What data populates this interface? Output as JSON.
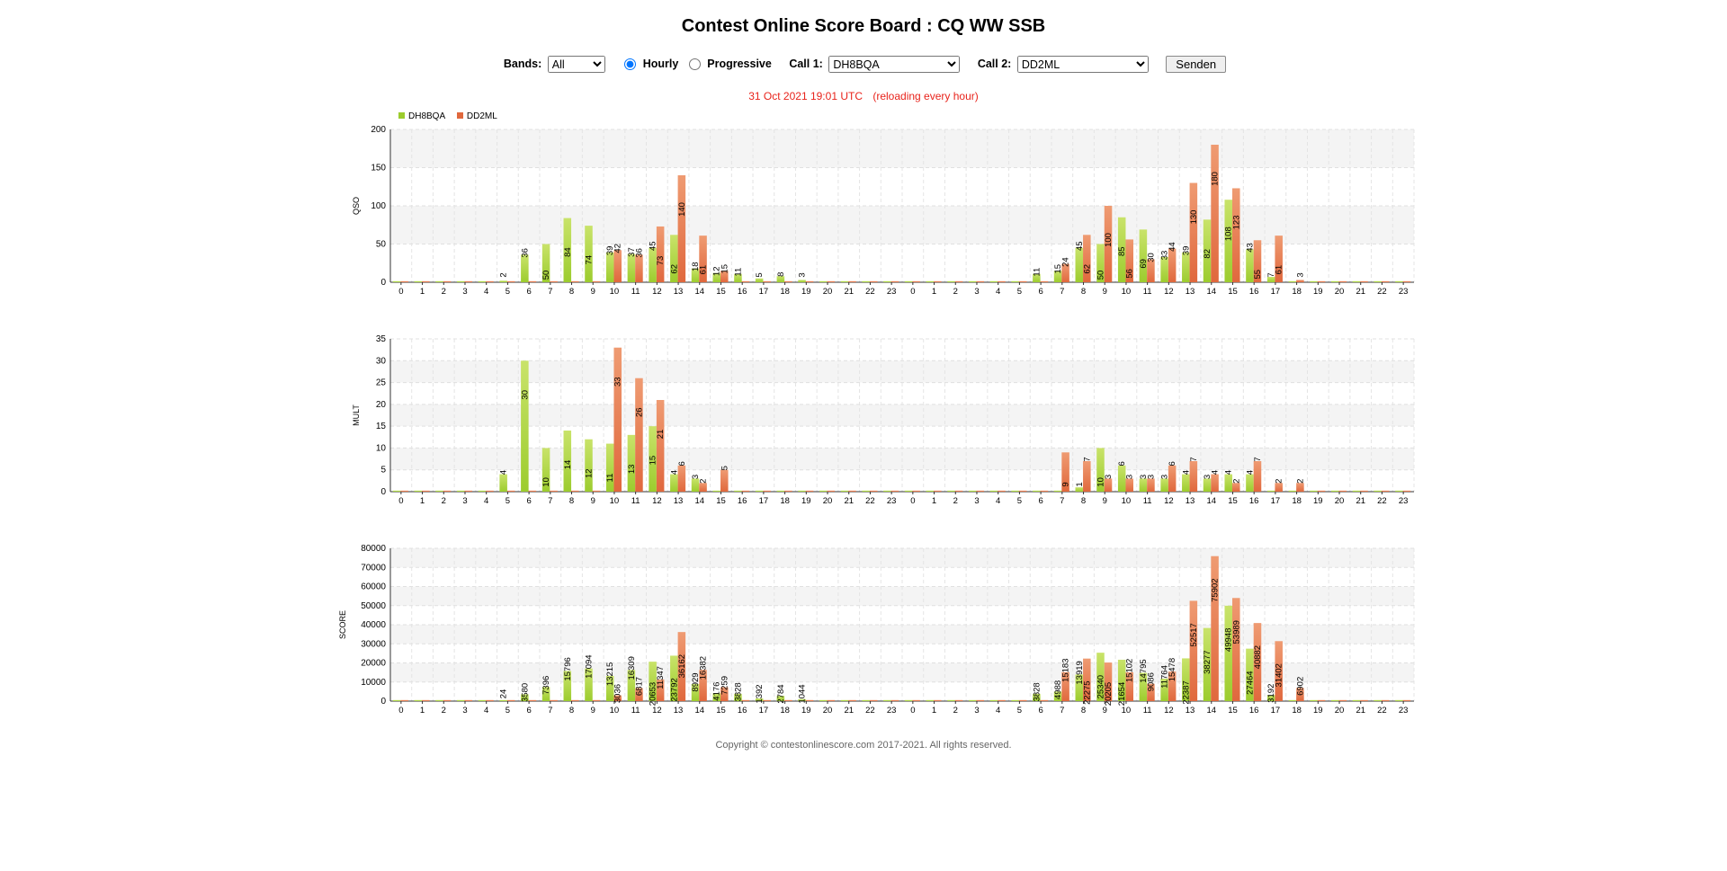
{
  "page": {
    "title": "Contest Online Score Board : CQ WW SSB",
    "controls": {
      "bands_label": "Bands:",
      "bands_value": "All",
      "hourly_label": "Hourly",
      "progressive_label": "Progressive",
      "mode_selected": "Hourly",
      "call1_label": "Call 1:",
      "call1_value": "DH8BQA",
      "call2_label": "Call 2:",
      "call2_value": "DD2ML",
      "submit_label": "Senden"
    },
    "timestamp": "31 Oct 2021 19:01 UTC",
    "reload_note": "(reloading every hour)",
    "footer": "Copyright © contestonlinescore.com 2017-2021. All rights reserved."
  },
  "colors": {
    "call1": "#9ccc2e",
    "call2": "#e0683d",
    "stripe": "#f4f4f4",
    "timestamp": "#e8231b"
  },
  "chart_data": [
    {
      "type": "bar",
      "title": "",
      "ylabel": "QSO",
      "ylim": [
        0,
        200
      ],
      "yticks": [
        0,
        50,
        100,
        150,
        200
      ],
      "categories": [
        "0",
        "1",
        "2",
        "3",
        "4",
        "5",
        "6",
        "7",
        "8",
        "9",
        "10",
        "11",
        "12",
        "13",
        "14",
        "15",
        "16",
        "17",
        "18",
        "19",
        "20",
        "21",
        "22",
        "23",
        "0",
        "1",
        "2",
        "3",
        "4",
        "5",
        "6",
        "7",
        "8",
        "9",
        "10",
        "11",
        "12",
        "13",
        "14",
        "15",
        "16",
        "17",
        "18",
        "19",
        "20",
        "21",
        "22",
        "23"
      ],
      "legend": "top-left",
      "series": [
        {
          "name": "DH8BQA",
          "values": [
            0,
            0,
            0,
            0,
            0,
            2,
            36,
            50,
            84,
            74,
            39,
            37,
            45,
            62,
            18,
            12,
            11,
            5,
            8,
            3,
            0,
            0,
            0,
            0,
            0,
            0,
            0,
            0,
            0,
            0,
            11,
            15,
            45,
            50,
            85,
            69,
            33,
            39,
            82,
            108,
            43,
            7,
            0,
            0,
            0,
            0,
            0,
            0
          ]
        },
        {
          "name": "DD2ML",
          "values": [
            0,
            0,
            0,
            0,
            0,
            0,
            0,
            0,
            0,
            0,
            42,
            36,
            73,
            140,
            61,
            15,
            0,
            0,
            0,
            0,
            0,
            0,
            0,
            0,
            0,
            0,
            0,
            0,
            0,
            0,
            0,
            24,
            62,
            100,
            56,
            30,
            44,
            130,
            180,
            123,
            55,
            61,
            3,
            0,
            0,
            0,
            0,
            0
          ]
        }
      ]
    },
    {
      "type": "bar",
      "title": "",
      "ylabel": "MULT",
      "ylim": [
        0,
        35
      ],
      "yticks": [
        0,
        5,
        10,
        15,
        20,
        25,
        30,
        35
      ],
      "categories": [
        "0",
        "1",
        "2",
        "3",
        "4",
        "5",
        "6",
        "7",
        "8",
        "9",
        "10",
        "11",
        "12",
        "13",
        "14",
        "15",
        "16",
        "17",
        "18",
        "19",
        "20",
        "21",
        "22",
        "23",
        "0",
        "1",
        "2",
        "3",
        "4",
        "5",
        "6",
        "7",
        "8",
        "9",
        "10",
        "11",
        "12",
        "13",
        "14",
        "15",
        "16",
        "17",
        "18",
        "19",
        "20",
        "21",
        "22",
        "23"
      ],
      "legend": "top-left",
      "series": [
        {
          "name": "DH8BQA",
          "values": [
            0,
            0,
            0,
            0,
            0,
            4,
            30,
            10,
            14,
            12,
            11,
            13,
            15,
            4,
            3,
            0,
            0,
            0,
            0,
            0,
            0,
            0,
            0,
            0,
            0,
            0,
            0,
            0,
            0,
            0,
            0,
            0,
            1,
            10,
            6,
            3,
            3,
            4,
            3,
            4,
            4,
            0,
            0,
            0,
            0,
            0,
            0,
            0
          ]
        },
        {
          "name": "DD2ML",
          "values": [
            0,
            0,
            0,
            0,
            0,
            0,
            0,
            0,
            0,
            0,
            33,
            26,
            21,
            6,
            2,
            5,
            0,
            0,
            0,
            0,
            0,
            0,
            0,
            0,
            0,
            0,
            0,
            0,
            0,
            0,
            0,
            9,
            7,
            3,
            3,
            3,
            6,
            7,
            4,
            2,
            7,
            2,
            2,
            0,
            0,
            0,
            0,
            0
          ]
        }
      ]
    },
    {
      "type": "bar",
      "title": "",
      "ylabel": "SCORE",
      "ylim": [
        0,
        80000
      ],
      "yticks": [
        0,
        10000,
        20000,
        30000,
        40000,
        50000,
        60000,
        70000,
        80000
      ],
      "categories": [
        "0",
        "1",
        "2",
        "3",
        "4",
        "5",
        "6",
        "7",
        "8",
        "9",
        "10",
        "11",
        "12",
        "13",
        "14",
        "15",
        "16",
        "17",
        "18",
        "19",
        "20",
        "21",
        "22",
        "23",
        "0",
        "1",
        "2",
        "3",
        "4",
        "5",
        "6",
        "7",
        "8",
        "9",
        "10",
        "11",
        "12",
        "13",
        "14",
        "15",
        "16",
        "17",
        "18",
        "19",
        "20",
        "21",
        "22",
        "23"
      ],
      "legend": "top-left",
      "series": [
        {
          "name": "DH8BQA",
          "values": [
            0,
            0,
            0,
            0,
            0,
            24,
            3580,
            7396,
            15796,
            17094,
            13215,
            16309,
            20653,
            23792,
            8929,
            4176,
            3828,
            1392,
            2784,
            1044,
            0,
            0,
            0,
            0,
            0,
            0,
            0,
            0,
            0,
            0,
            3828,
            4988,
            13919,
            25340,
            21654,
            14795,
            11764,
            22387,
            38277,
            49948,
            27464,
            3192,
            0,
            0,
            0,
            0,
            0,
            0
          ]
        },
        {
          "name": "DD2ML",
          "values": [
            0,
            0,
            0,
            0,
            0,
            0,
            0,
            0,
            0,
            0,
            3036,
            6817,
            11347,
            36162,
            16382,
            7259,
            0,
            0,
            0,
            0,
            0,
            0,
            0,
            0,
            0,
            0,
            0,
            0,
            0,
            0,
            0,
            15183,
            22275,
            20205,
            15102,
            9086,
            15478,
            52517,
            75902,
            53989,
            40882,
            31402,
            6902,
            0,
            0,
            0,
            0,
            0
          ]
        }
      ]
    }
  ]
}
